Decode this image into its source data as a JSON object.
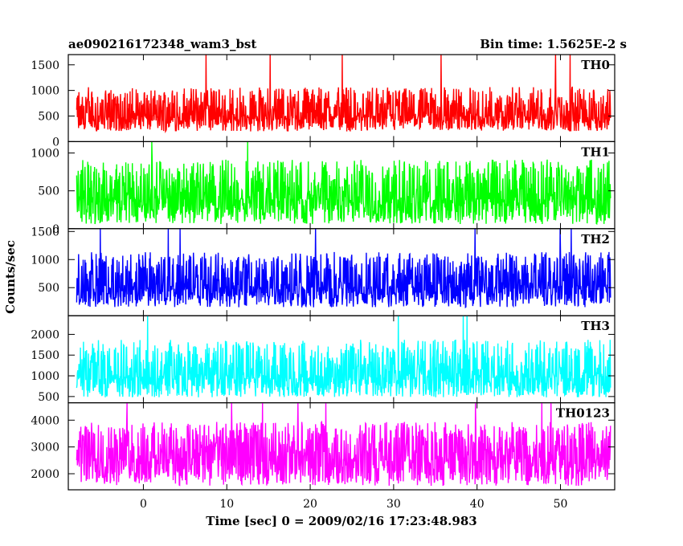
{
  "chart_data": {
    "type": "line",
    "title": "ae090216172348_wam3_bst",
    "subtitle": "Bin time: 1.5625E-2 s",
    "xlabel": "Time [sec] 0 = 2009/02/16 17:23:48.983",
    "ylabel": "Counts/sec",
    "xlim": [
      -9,
      56.5
    ],
    "x_ticks": [
      "0",
      "10",
      "20",
      "30",
      "40",
      "50"
    ],
    "x_tick_values": [
      0,
      10,
      20,
      30,
      40,
      50
    ],
    "data_x_range": [
      -8,
      56
    ],
    "panels": [
      {
        "name": "TH0",
        "color": "#ff0000",
        "ylim": [
          0,
          1700
        ],
        "y_tick_values": [
          0,
          500,
          1000,
          1500
        ],
        "y_ticks": [
          "0",
          "500",
          "1000",
          "1500"
        ],
        "baseline": 200,
        "mean": 650,
        "spread": 400,
        "peak": 1700
      },
      {
        "name": "TH1",
        "color": "#00ff00",
        "ylim": [
          0,
          1150
        ],
        "y_tick_values": [
          0,
          500,
          1000
        ],
        "y_ticks": [
          "0",
          "500",
          "1000"
        ],
        "baseline": 60,
        "mean": 560,
        "spread": 340,
        "peak": 1150
      },
      {
        "name": "TH2",
        "color": "#0000ff",
        "ylim": [
          0,
          1550
        ],
        "y_tick_values": [
          500,
          1000,
          1500
        ],
        "y_ticks": [
          "500",
          "1000",
          "1500"
        ],
        "baseline": 150,
        "mean": 700,
        "spread": 420,
        "peak": 1550
      },
      {
        "name": "TH3",
        "color": "#00ffff",
        "ylim": [
          350,
          2450
        ],
        "y_tick_values": [
          500,
          1000,
          1500,
          2000
        ],
        "y_ticks": [
          "500",
          "1000",
          "1500",
          "2000"
        ],
        "baseline": 480,
        "mean": 1250,
        "spread": 600,
        "peak": 2450
      },
      {
        "name": "TH0123",
        "color": "#ff00ff",
        "ylim": [
          1400,
          4650
        ],
        "y_tick_values": [
          2000,
          3000,
          4000
        ],
        "y_ticks": [
          "2000",
          "3000",
          "4000"
        ],
        "baseline": 1550,
        "mean": 3000,
        "spread": 900,
        "peak": 4650
      }
    ]
  }
}
